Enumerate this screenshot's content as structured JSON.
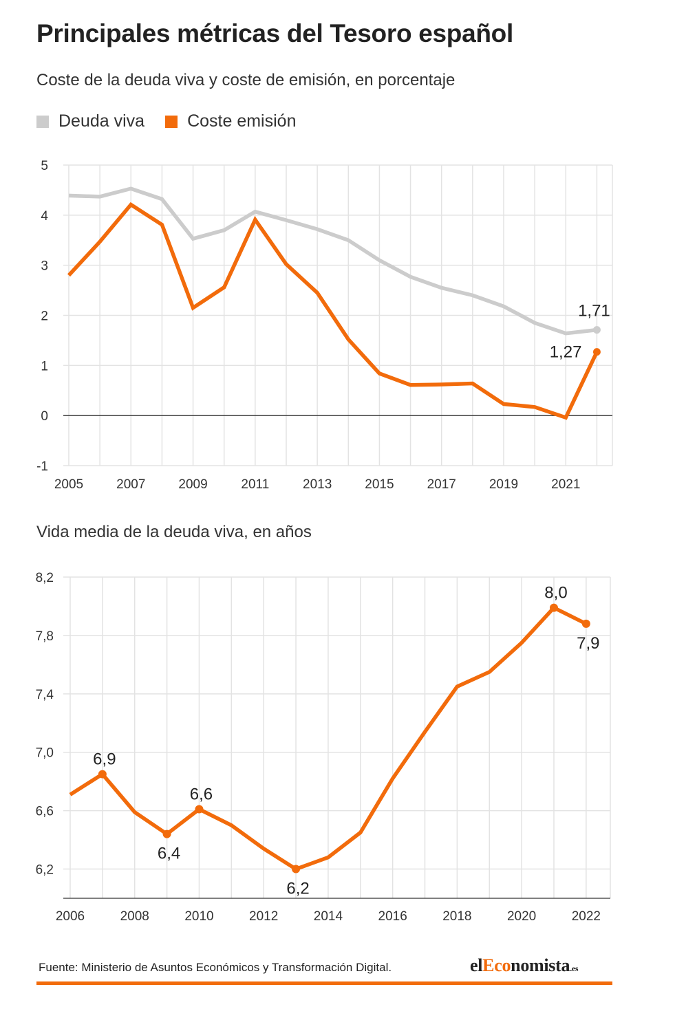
{
  "title": "Principales métricas del Tesoro español",
  "colors": {
    "deuda_viva": "#cccccc",
    "coste_emision": "#f26b0b",
    "grid": "#e3e3e3",
    "zero_line": "#333333",
    "text": "#333333"
  },
  "chart1": {
    "subtitle": "Coste de la deuda viva y coste de emisión, en porcentaje",
    "legend": [
      {
        "label": "Deuda viva",
        "color": "#cccccc"
      },
      {
        "label": "Coste emisión",
        "color": "#f26b0b"
      }
    ]
  },
  "chart2": {
    "title": "Vida media de la deuda viva, en años"
  },
  "footer": {
    "source": "Fuente: Ministerio de Asuntos Económicos y Transformación Digital.",
    "brand_prefix": "el",
    "brand_accent": "Eco",
    "brand_main": "nomista",
    "brand_suffix": ".es"
  },
  "chart_data": [
    {
      "type": "line",
      "title": "Coste de la deuda viva y coste de emisión, en porcentaje",
      "x": [
        2005,
        2006,
        2007,
        2008,
        2009,
        2010,
        2011,
        2012,
        2013,
        2014,
        2015,
        2016,
        2017,
        2018,
        2019,
        2020,
        2021,
        2022
      ],
      "xticks": [
        2005,
        2007,
        2009,
        2011,
        2013,
        2015,
        2017,
        2019,
        2021
      ],
      "yticks": [
        -1,
        0,
        1,
        2,
        3,
        4,
        5
      ],
      "ylim": [
        -1,
        5
      ],
      "grid": true,
      "legend_position": "top-left",
      "series": [
        {
          "name": "Deuda viva",
          "color": "#cccccc",
          "values": [
            4.39,
            4.37,
            4.53,
            4.32,
            3.53,
            3.7,
            4.07,
            3.9,
            3.72,
            3.5,
            3.1,
            2.77,
            2.55,
            2.4,
            2.18,
            1.85,
            1.64,
            1.71
          ]
        },
        {
          "name": "Coste emisión",
          "color": "#f26b0b",
          "values": [
            2.8,
            3.47,
            4.21,
            3.81,
            2.15,
            2.56,
            3.91,
            3.02,
            2.45,
            1.52,
            0.84,
            0.61,
            0.62,
            0.64,
            0.23,
            0.17,
            -0.04,
            1.27
          ]
        }
      ],
      "annotations": [
        {
          "series": "Deuda viva",
          "x": 2022,
          "text": "1,71"
        },
        {
          "series": "Coste emisión",
          "x": 2022,
          "text": "1,27"
        }
      ]
    },
    {
      "type": "line",
      "title": "Vida media de la deuda viva, en años",
      "x": [
        2006,
        2007,
        2008,
        2009,
        2010,
        2011,
        2012,
        2013,
        2014,
        2015,
        2016,
        2017,
        2018,
        2019,
        2020,
        2021,
        2022
      ],
      "xticks": [
        2006,
        2008,
        2010,
        2012,
        2014,
        2016,
        2018,
        2020,
        2022
      ],
      "yticks": [
        6.2,
        6.6,
        7.0,
        7.4,
        7.8,
        8.2
      ],
      "ytick_labels": [
        "6,2",
        "6,6",
        "7,0",
        "7,4",
        "7,8",
        "8,2"
      ],
      "ylim": [
        6.0,
        8.2
      ],
      "grid": true,
      "series": [
        {
          "name": "",
          "color": "#f26b0b",
          "values": [
            6.71,
            6.85,
            6.59,
            6.44,
            6.61,
            6.5,
            6.34,
            6.2,
            6.28,
            6.45,
            6.82,
            7.14,
            7.45,
            7.55,
            7.75,
            7.99,
            7.88
          ]
        }
      ],
      "markers": [
        {
          "x": 2007,
          "text": "6,9",
          "pos": "above"
        },
        {
          "x": 2009,
          "text": "6,4",
          "pos": "below"
        },
        {
          "x": 2010,
          "text": "6,6",
          "pos": "above"
        },
        {
          "x": 2013,
          "text": "6,2",
          "pos": "below"
        },
        {
          "x": 2021,
          "text": "8,0",
          "pos": "above"
        },
        {
          "x": 2022,
          "text": "7,9",
          "pos": "below"
        }
      ]
    }
  ]
}
